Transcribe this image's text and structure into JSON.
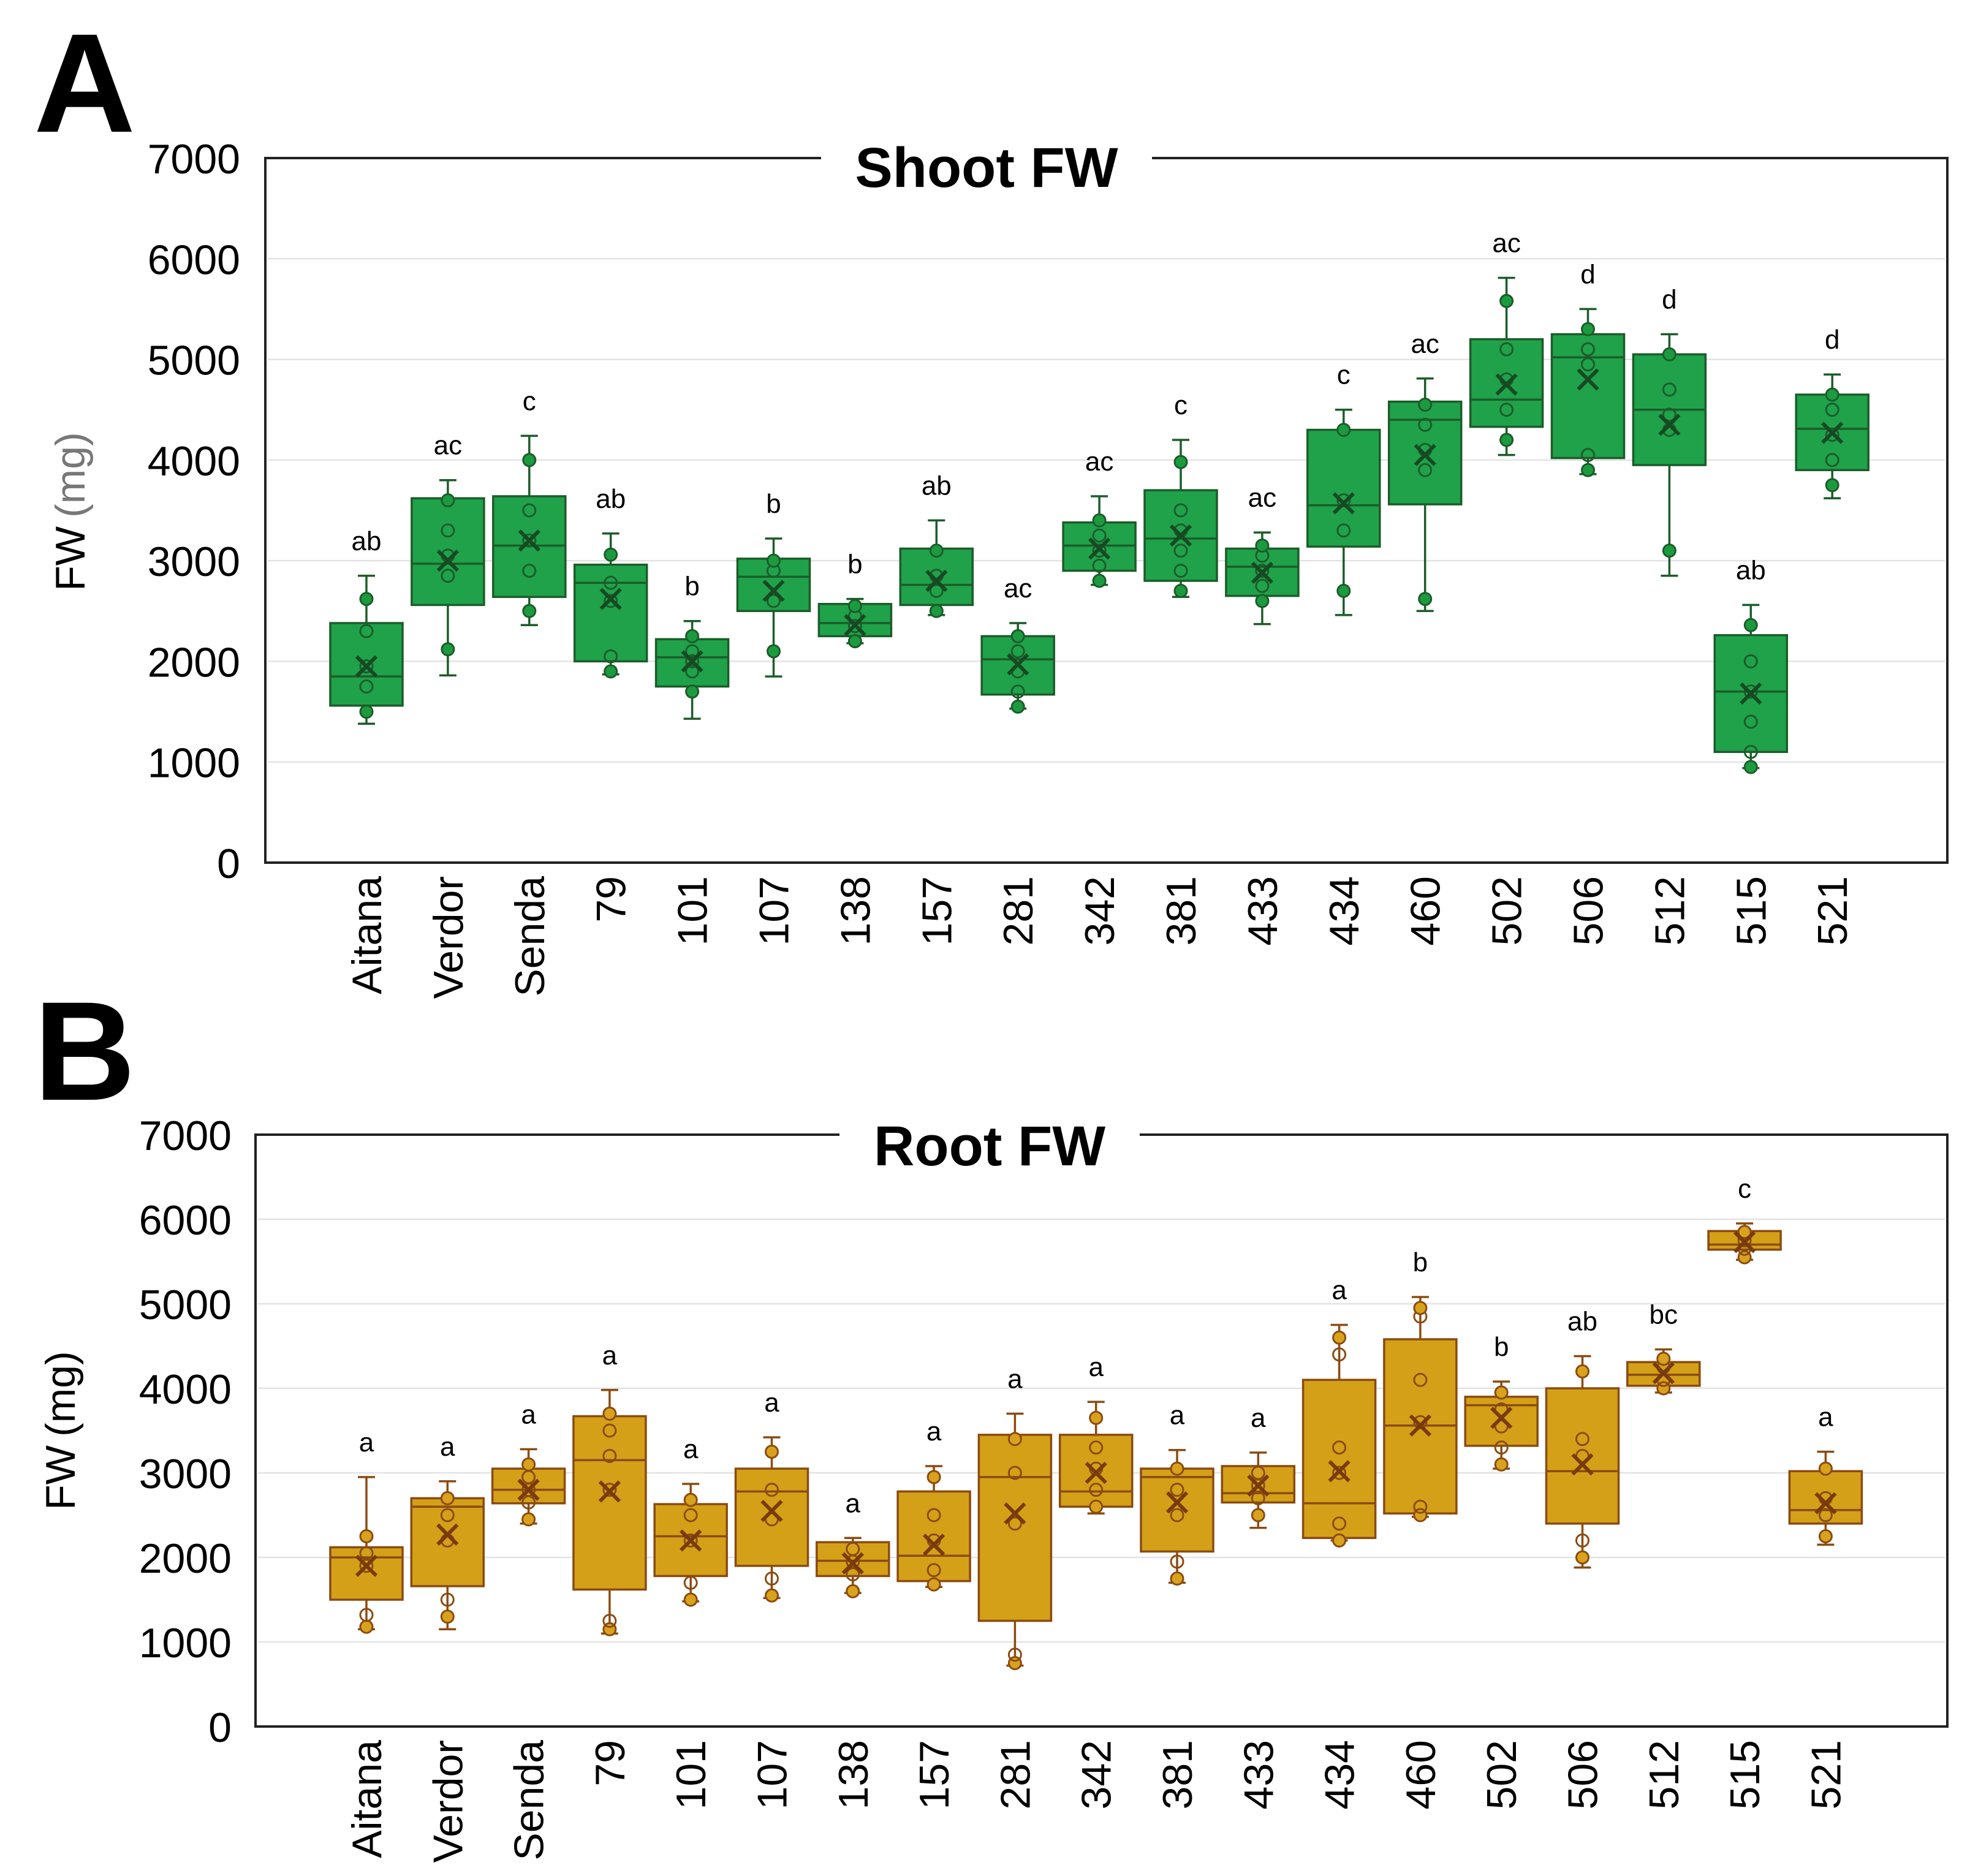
{
  "panels": [
    {
      "letter": "A",
      "title": "Shoot FW",
      "ylabel_main": "FW",
      "ylabel_unit": "(mg)",
      "ylim": [
        0,
        7000
      ],
      "ticks": [
        0,
        1000,
        2000,
        3000,
        4000,
        5000,
        6000,
        7000
      ],
      "colors": {
        "fill": "#1fa24a",
        "stroke": "#1c5c2a",
        "point_fill": "#1c9a3f",
        "mean_stroke": "#164a22"
      }
    },
    {
      "letter": "B",
      "title": "Root FW",
      "ylabel_main": "FW",
      "ylabel_unit": "(mg)",
      "ylim": [
        0,
        7000
      ],
      "ticks": [
        0,
        1000,
        2000,
        3000,
        4000,
        5000,
        6000,
        7000
      ],
      "colors": {
        "fill": "#d4a017",
        "stroke": "#8a4b12",
        "point_fill": "#d9a21c",
        "mean_stroke": "#7a3b0c"
      }
    }
  ],
  "chart_data": [
    {
      "type": "box",
      "title": "Shoot FW",
      "xlabel": "",
      "ylabel": "FW (mg)",
      "ylim": [
        0,
        7000
      ],
      "grid": true,
      "categories": [
        "Aitana",
        "Verdor",
        "Senda",
        "79",
        "101",
        "107",
        "138",
        "157",
        "281",
        "342",
        "381",
        "433",
        "434",
        "460",
        "502",
        "506",
        "512",
        "515",
        "521"
      ],
      "boxes": [
        {
          "min": 1380,
          "q1": 1560,
          "median": 1850,
          "q3": 2380,
          "max": 2850,
          "mean": 1950,
          "letter": "ab",
          "points": [
            1500,
            1750,
            1950,
            2300,
            2620
          ]
        },
        {
          "min": 1860,
          "q1": 2560,
          "median": 2970,
          "q3": 3620,
          "max": 3800,
          "mean": 3000,
          "letter": "ac",
          "points": [
            2120,
            2850,
            3050,
            3300,
            3600
          ]
        },
        {
          "min": 2360,
          "q1": 2640,
          "median": 3150,
          "q3": 3640,
          "max": 4240,
          "mean": 3200,
          "letter": "c",
          "points": [
            2500,
            2900,
            3200,
            3500,
            4000
          ]
        },
        {
          "min": 1870,
          "q1": 2000,
          "median": 2780,
          "q3": 2960,
          "max": 3270,
          "mean": 2620,
          "letter": "ab",
          "points": [
            1900,
            2050,
            2600,
            2780,
            3060
          ]
        },
        {
          "min": 1430,
          "q1": 1750,
          "median": 2040,
          "q3": 2220,
          "max": 2400,
          "mean": 2000,
          "letter": "b",
          "points": [
            1700,
            1900,
            2000,
            2100,
            2250
          ]
        },
        {
          "min": 1850,
          "q1": 2500,
          "median": 2840,
          "q3": 3020,
          "max": 3220,
          "mean": 2700,
          "letter": "b",
          "points": [
            2100,
            2600,
            2900,
            3000
          ]
        },
        {
          "min": 2180,
          "q1": 2250,
          "median": 2380,
          "q3": 2570,
          "max": 2620,
          "mean": 2360,
          "letter": "b",
          "points": [
            2200,
            2350,
            2450,
            2550
          ]
        },
        {
          "min": 2460,
          "q1": 2560,
          "median": 2760,
          "q3": 3120,
          "max": 3400,
          "mean": 2800,
          "letter": "ab",
          "points": [
            2500,
            2700,
            2850,
            3100
          ]
        },
        {
          "min": 1530,
          "q1": 1670,
          "median": 2020,
          "q3": 2250,
          "max": 2380,
          "mean": 1970,
          "letter": "ac",
          "points": [
            1550,
            1700,
            1900,
            2100,
            2250
          ]
        },
        {
          "min": 2760,
          "q1": 2900,
          "median": 3150,
          "q3": 3380,
          "max": 3640,
          "mean": 3120,
          "letter": "ac",
          "points": [
            2800,
            2950,
            3100,
            3250,
            3400
          ]
        },
        {
          "min": 2640,
          "q1": 2800,
          "median": 3220,
          "q3": 3700,
          "max": 4200,
          "mean": 3250,
          "letter": "c",
          "points": [
            2700,
            2900,
            3100,
            3300,
            3500,
            3980
          ]
        },
        {
          "min": 2370,
          "q1": 2650,
          "median": 2940,
          "q3": 3120,
          "max": 3280,
          "mean": 2880,
          "letter": "ac",
          "points": [
            2600,
            2750,
            2900,
            3050,
            3150
          ]
        },
        {
          "min": 2460,
          "q1": 3140,
          "median": 3550,
          "q3": 4300,
          "max": 4500,
          "mean": 3570,
          "letter": "c",
          "points": [
            2700,
            3300,
            3600,
            4300
          ]
        },
        {
          "min": 2500,
          "q1": 3560,
          "median": 4400,
          "q3": 4580,
          "max": 4810,
          "mean": 4050,
          "letter": "ac",
          "points": [
            2620,
            3900,
            4100,
            4350,
            4550
          ]
        },
        {
          "min": 4050,
          "q1": 4330,
          "median": 4600,
          "q3": 5200,
          "max": 5810,
          "mean": 4750,
          "letter": "ac",
          "points": [
            4200,
            4500,
            4800,
            5100,
            5580
          ]
        },
        {
          "min": 3860,
          "q1": 4020,
          "median": 5020,
          "q3": 5250,
          "max": 5500,
          "mean": 4800,
          "letter": "d",
          "points": [
            3900,
            4050,
            4950,
            5100,
            5300
          ]
        },
        {
          "min": 2850,
          "q1": 3950,
          "median": 4500,
          "q3": 5050,
          "max": 5250,
          "mean": 4350,
          "letter": "d",
          "points": [
            3100,
            4300,
            4450,
            4700,
            5050
          ]
        },
        {
          "min": 940,
          "q1": 1100,
          "median": 1700,
          "q3": 2260,
          "max": 2560,
          "mean": 1680,
          "letter": "ab",
          "points": [
            950,
            1100,
            1400,
            1700,
            2000,
            2360
          ]
        },
        {
          "min": 3620,
          "q1": 3900,
          "median": 4310,
          "q3": 4650,
          "max": 4850,
          "mean": 4270,
          "letter": "d",
          "points": [
            3750,
            4000,
            4250,
            4500,
            4650
          ]
        }
      ]
    },
    {
      "type": "box",
      "title": "Root FW",
      "xlabel": "",
      "ylabel": "FW (mg)",
      "ylim": [
        0,
        7000
      ],
      "grid": true,
      "categories": [
        "Aitana",
        "Verdor",
        "Senda",
        "79",
        "101",
        "107",
        "138",
        "157",
        "281",
        "342",
        "381",
        "433",
        "434",
        "460",
        "502",
        "506",
        "512",
        "515",
        "521"
      ],
      "boxes": [
        {
          "min": 1150,
          "q1": 1500,
          "median": 2000,
          "q3": 2120,
          "max": 2950,
          "mean": 1900,
          "letter": "a",
          "points": [
            1180,
            1320,
            1900,
            2050,
            2250
          ]
        },
        {
          "min": 1150,
          "q1": 1660,
          "median": 2600,
          "q3": 2700,
          "max": 2900,
          "mean": 2270,
          "letter": "a",
          "points": [
            1300,
            1500,
            2200,
            2500,
            2700
          ]
        },
        {
          "min": 2400,
          "q1": 2640,
          "median": 2800,
          "q3": 3050,
          "max": 3280,
          "mean": 2800,
          "letter": "a",
          "points": [
            2450,
            2650,
            2800,
            2950,
            3100
          ]
        },
        {
          "min": 1100,
          "q1": 1620,
          "median": 3150,
          "q3": 3670,
          "max": 3980,
          "mean": 2780,
          "letter": "a",
          "points": [
            1150,
            1250,
            2800,
            3200,
            3500,
            3700
          ]
        },
        {
          "min": 1480,
          "q1": 1780,
          "median": 2250,
          "q3": 2630,
          "max": 2870,
          "mean": 2200,
          "letter": "a",
          "points": [
            1500,
            1700,
            2200,
            2500,
            2680
          ]
        },
        {
          "min": 1520,
          "q1": 1900,
          "median": 2780,
          "q3": 3050,
          "max": 3420,
          "mean": 2550,
          "letter": "a",
          "points": [
            1550,
            1750,
            2450,
            2800,
            3250
          ]
        },
        {
          "min": 1580,
          "q1": 1780,
          "median": 1960,
          "q3": 2180,
          "max": 2230,
          "mean": 1930,
          "letter": "a",
          "points": [
            1600,
            1800,
            1950,
            2100
          ]
        },
        {
          "min": 1650,
          "q1": 1720,
          "median": 2020,
          "q3": 2780,
          "max": 3080,
          "mean": 2150,
          "letter": "a",
          "points": [
            1680,
            1850,
            2200,
            2500,
            2950
          ]
        },
        {
          "min": 720,
          "q1": 1250,
          "median": 2950,
          "q3": 3450,
          "max": 3700,
          "mean": 2520,
          "letter": "a",
          "points": [
            750,
            850,
            2400,
            3000,
            3400
          ]
        },
        {
          "min": 2520,
          "q1": 2600,
          "median": 2780,
          "q3": 3450,
          "max": 3840,
          "mean": 3000,
          "letter": "a",
          "points": [
            2600,
            2800,
            3050,
            3300,
            3650
          ]
        },
        {
          "min": 1700,
          "q1": 2070,
          "median": 2950,
          "q3": 3050,
          "max": 3270,
          "mean": 2650,
          "letter": "a",
          "points": [
            1750,
            1950,
            2500,
            2800,
            3050
          ]
        },
        {
          "min": 2350,
          "q1": 2650,
          "median": 2760,
          "q3": 3080,
          "max": 3240,
          "mean": 2850,
          "letter": "a",
          "points": [
            2500,
            2700,
            2850,
            3000
          ]
        },
        {
          "min": 2200,
          "q1": 2230,
          "median": 2640,
          "q3": 4100,
          "max": 4750,
          "mean": 3020,
          "letter": "a",
          "points": [
            2200,
            2400,
            3000,
            3300,
            4400,
            4600
          ]
        },
        {
          "min": 2480,
          "q1": 2520,
          "median": 3560,
          "q3": 4580,
          "max": 5080,
          "mean": 3560,
          "letter": "b",
          "points": [
            2500,
            2600,
            3600,
            4100,
            4850,
            4950
          ]
        },
        {
          "min": 3050,
          "q1": 3320,
          "median": 3800,
          "q3": 3900,
          "max": 4080,
          "mean": 3650,
          "letter": "b",
          "points": [
            3100,
            3300,
            3550,
            3750,
            3950
          ]
        },
        {
          "min": 1880,
          "q1": 2400,
          "median": 3020,
          "q3": 4000,
          "max": 4380,
          "mean": 3100,
          "letter": "ab",
          "points": [
            2000,
            2200,
            3200,
            3400,
            4200
          ]
        },
        {
          "min": 3950,
          "q1": 4030,
          "median": 4160,
          "q3": 4310,
          "max": 4460,
          "mean": 4180,
          "letter": "bc",
          "points": [
            4000,
            4100,
            4250,
            4350
          ]
        },
        {
          "min": 5520,
          "q1": 5640,
          "median": 5700,
          "q3": 5860,
          "max": 5950,
          "mean": 5730,
          "letter": "c",
          "points": [
            5550,
            5650,
            5750,
            5850
          ]
        },
        {
          "min": 2150,
          "q1": 2400,
          "median": 2560,
          "q3": 3020,
          "max": 3250,
          "mean": 2640,
          "letter": "a",
          "points": [
            2250,
            2500,
            2700,
            3050
          ]
        }
      ]
    }
  ]
}
